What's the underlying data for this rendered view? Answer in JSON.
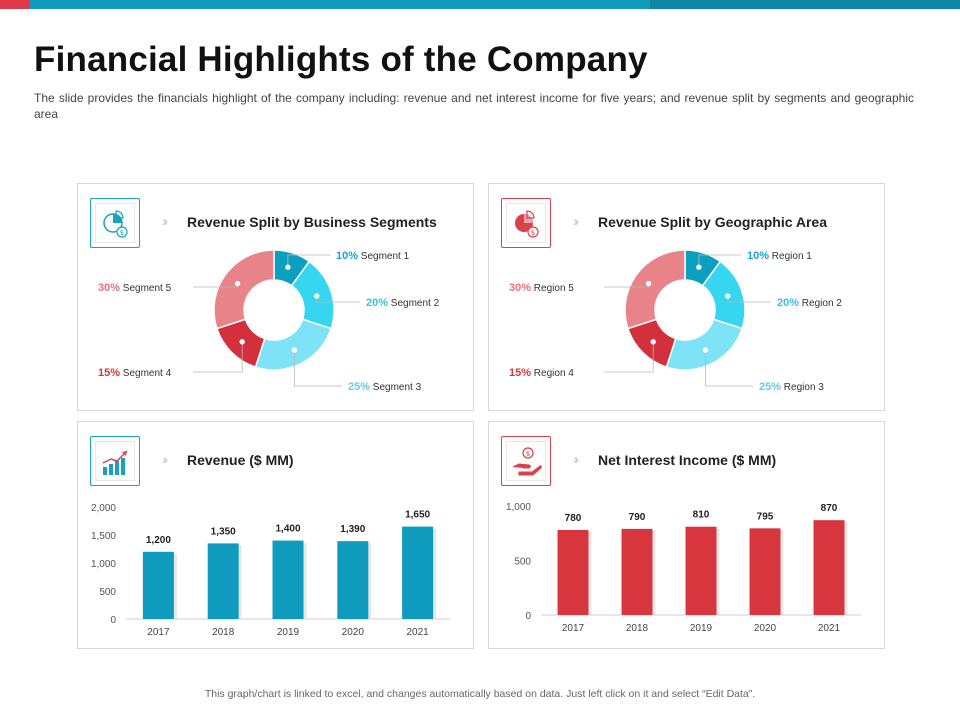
{
  "title": "Financial Highlights of the Company",
  "subtitle": "The slide provides the financials highlight of the company including: revenue and net interest income for five years; and revenue split by segments and geographic area",
  "footer": "This graph/chart is linked to excel, and changes automatically based on data. Just left click on it and select “Edit Data”.",
  "colors": {
    "teal": "#0e9bbd",
    "red": "#d7363f",
    "slices": [
      "#0b9fc0",
      "#36d6f0",
      "#7ee3f7",
      "#d42f3c",
      "#e8838a"
    ]
  },
  "panels": {
    "segments": {
      "title": "Revenue Split by Business Segments",
      "icon": "pie-dollar-icon"
    },
    "geographic": {
      "title": "Revenue Split by Geographic Area",
      "icon": "pie-dollar-icon"
    },
    "revenue": {
      "title": "Revenue ($ MM)",
      "icon": "growth-chart-icon"
    },
    "nii": {
      "title": "Net Interest Income ($ MM)",
      "icon": "hand-money-icon"
    }
  },
  "chart_data": [
    {
      "id": "segments",
      "type": "pie",
      "donut": true,
      "title": "Revenue Split by Business Segments",
      "labels": [
        "Segment 1",
        "Segment 2",
        "Segment 3",
        "Segment 4",
        "Segment 5"
      ],
      "values": [
        10,
        20,
        25,
        15,
        30
      ],
      "value_labels": [
        "10%",
        "20%",
        "25%",
        "15%",
        "30%"
      ]
    },
    {
      "id": "geographic",
      "type": "pie",
      "donut": true,
      "title": "Revenue Split by Geographic Area",
      "labels": [
        "Region 1",
        "Region 2",
        "Region 3",
        "Region 4",
        "Region 5"
      ],
      "values": [
        10,
        20,
        25,
        15,
        30
      ],
      "value_labels": [
        "10%",
        "20%",
        "25%",
        "15%",
        "30%"
      ]
    },
    {
      "id": "revenue",
      "type": "bar",
      "title": "Revenue ($ MM)",
      "categories": [
        "2017",
        "2018",
        "2019",
        "2020",
        "2021"
      ],
      "values": [
        1200,
        1350,
        1400,
        1390,
        1650
      ],
      "value_labels": [
        "1,200",
        "1,350",
        "1,400",
        "1,390",
        "1,650"
      ],
      "ylim": [
        0,
        2000
      ],
      "yticks": [
        0,
        500,
        1000,
        1500,
        2000
      ],
      "ytick_labels": [
        "0",
        "500",
        "1,000",
        "1,500",
        "2,000"
      ]
    },
    {
      "id": "nii",
      "type": "bar",
      "title": "Net Interest Income ($ MM)",
      "categories": [
        "2017",
        "2018",
        "2019",
        "2020",
        "2021"
      ],
      "values": [
        780,
        790,
        810,
        795,
        870
      ],
      "value_labels": [
        "780",
        "790",
        "810",
        "795",
        "870"
      ],
      "ylim": [
        0,
        1000
      ],
      "yticks": [
        0,
        500,
        1000
      ],
      "ytick_labels": [
        "0",
        "500",
        "1,000"
      ]
    }
  ]
}
